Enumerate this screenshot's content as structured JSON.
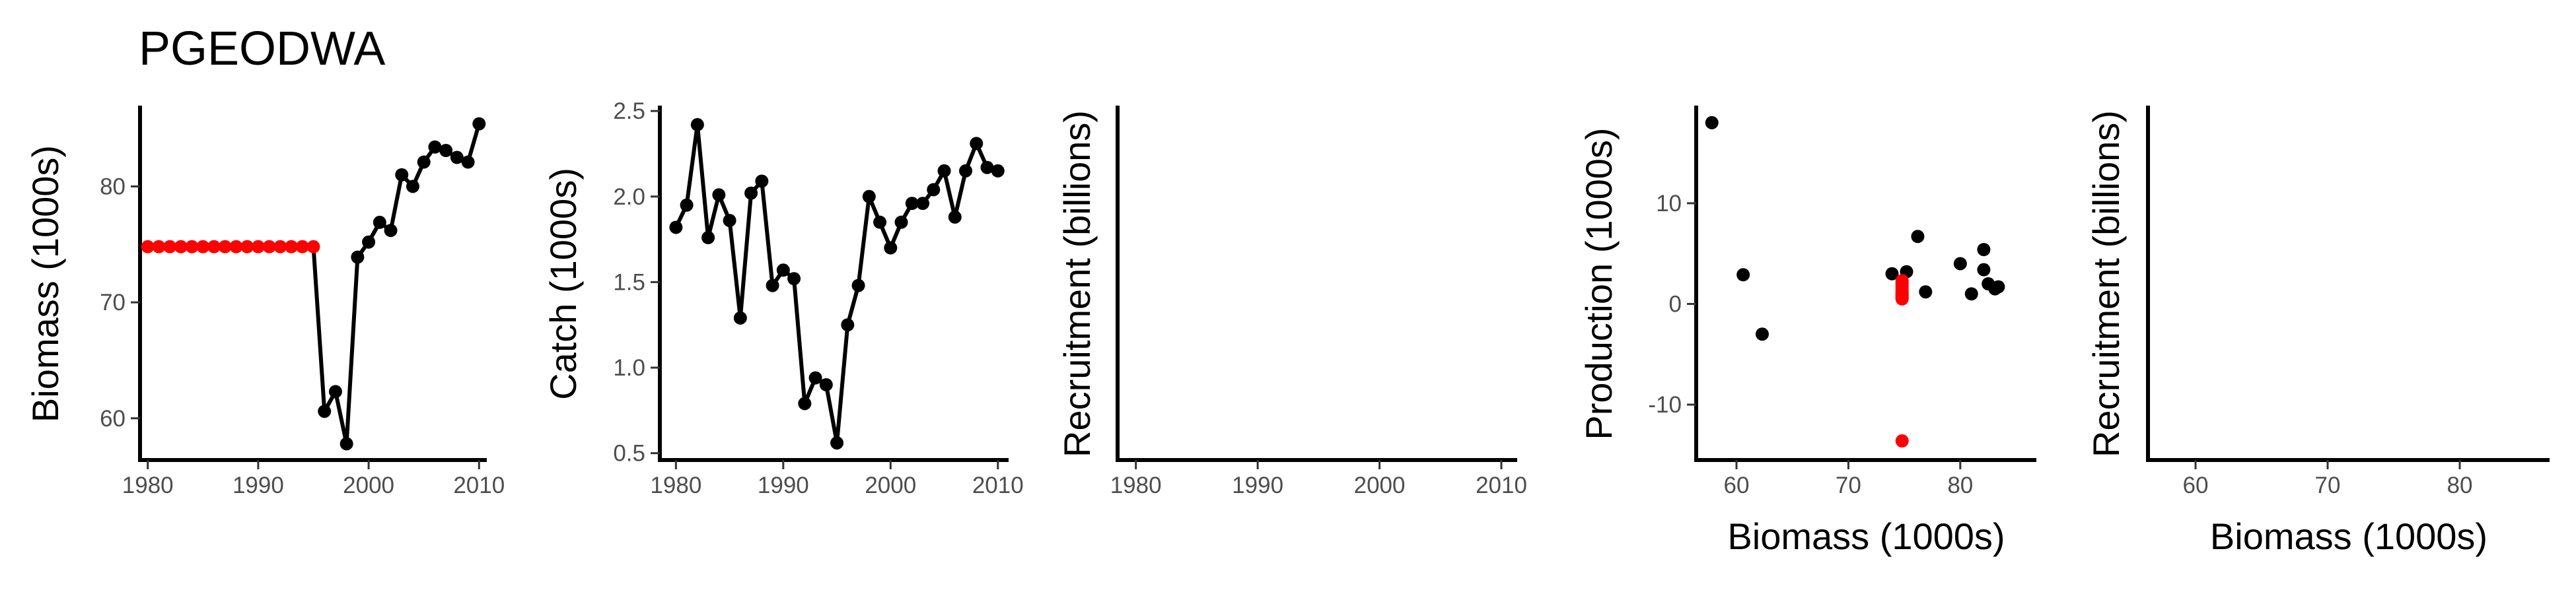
{
  "figure": {
    "title": "PGEODWA"
  },
  "colors": {
    "observed": "#000000",
    "imputed": "#ff0000",
    "text": "#000000",
    "tick_text": "#4d4d4d"
  },
  "chart_data": [
    {
      "id": "biomass",
      "type": "line",
      "xlabel": "",
      "ylabel": "Biomass (1000s)",
      "xlim": [
        1979.3,
        2010.7
      ],
      "ylim": [
        56.4,
        86.8
      ],
      "xticks": [
        1980,
        1990,
        2000,
        2010
      ],
      "yticks": [
        60,
        70,
        80
      ],
      "series": [
        {
          "x": [
            1980,
            1981,
            1982,
            1983,
            1984,
            1985,
            1986,
            1987,
            1988,
            1989,
            1990,
            1991,
            1992,
            1993,
            1994,
            1995,
            1996,
            1997,
            1998,
            1999,
            2000,
            2001,
            2002,
            2003,
            2004,
            2005,
            2006,
            2007,
            2008,
            2009,
            2010
          ],
          "y": [
            74.8,
            74.8,
            74.8,
            74.8,
            74.8,
            74.8,
            74.8,
            74.8,
            74.8,
            74.8,
            74.8,
            74.8,
            74.8,
            74.8,
            74.8,
            74.8,
            60.6,
            62.3,
            57.8,
            73.9,
            75.2,
            76.9,
            76.2,
            81.0,
            80.0,
            82.1,
            83.4,
            83.1,
            82.5,
            82.1,
            85.4
          ],
          "point_colors": [
            "imputed",
            "imputed",
            "imputed",
            "imputed",
            "imputed",
            "imputed",
            "imputed",
            "imputed",
            "imputed",
            "imputed",
            "imputed",
            "imputed",
            "imputed",
            "imputed",
            "imputed",
            "imputed",
            "observed",
            "observed",
            "observed",
            "observed",
            "observed",
            "observed",
            "observed",
            "observed",
            "observed",
            "observed",
            "observed",
            "observed",
            "observed",
            "observed",
            "observed"
          ],
          "line_from_index": 15
        }
      ]
    },
    {
      "id": "catch",
      "type": "line",
      "xlabel": "",
      "ylabel": "Catch (1000s)",
      "xlim": [
        1978.5,
        2011.0
      ],
      "ylim": [
        0.46,
        2.52
      ],
      "xticks": [
        1980,
        1990,
        2000,
        2010
      ],
      "yticks": [
        0.5,
        1.0,
        1.5,
        2.0,
        2.5
      ],
      "ytick_labels": [
        "0.5",
        "1.0",
        "1.5",
        "2.0",
        "2.5"
      ],
      "series": [
        {
          "x": [
            1980,
            1981,
            1982,
            1983,
            1984,
            1985,
            1986,
            1987,
            1988,
            1989,
            1990,
            1991,
            1992,
            1993,
            1994,
            1995,
            1996,
            1997,
            1998,
            1999,
            2000,
            2001,
            2002,
            2003,
            2004,
            2005,
            2006,
            2007,
            2008,
            2009,
            2010
          ],
          "y": [
            1.82,
            1.95,
            2.42,
            1.76,
            2.01,
            1.86,
            1.29,
            2.02,
            2.09,
            1.48,
            1.57,
            1.52,
            0.79,
            0.94,
            0.9,
            0.56,
            1.25,
            1.48,
            2.0,
            1.85,
            1.7,
            1.85,
            1.96,
            1.96,
            2.04,
            2.15,
            1.88,
            2.15,
            2.31,
            2.17,
            2.15
          ],
          "line_from_index": 0
        }
      ]
    },
    {
      "id": "recruitment-time",
      "type": "scatter",
      "xlabel": "",
      "ylabel": "Recruitment (billions)",
      "xlim": [
        1978.5,
        2011.3
      ],
      "xticks": [
        1980,
        1990,
        2000,
        2010
      ],
      "yticks": [],
      "series": []
    },
    {
      "id": "production",
      "type": "scatter",
      "xlabel": "Biomass (1000s)",
      "ylabel": "Production (1000s)",
      "xlim": [
        56.4,
        86.8
      ],
      "ylim": [
        -15.5,
        19.5
      ],
      "xticks": [
        60,
        70,
        80
      ],
      "yticks": [
        -10,
        0,
        10
      ],
      "series": [
        {
          "x": [
            57.8,
            60.6,
            62.3,
            73.9,
            75.2,
            76.2,
            76.9,
            74.8,
            74.8,
            74.8,
            74.8,
            74.8,
            74.8,
            74.8,
            74.8,
            74.8,
            74.8,
            74.8,
            74.8,
            74.8,
            74.8,
            74.8,
            80.0,
            81.0,
            82.1,
            82.1,
            82.5,
            83.4,
            83.1
          ],
          "y": [
            18.0,
            2.9,
            -3.0,
            3.0,
            3.2,
            6.7,
            1.2,
            2.3,
            2.0,
            1.8,
            1.5,
            1.3,
            1.0,
            0.9,
            0.8,
            0.6,
            0.5,
            2.1,
            1.7,
            1.1,
            0.7,
            -13.6,
            4.0,
            1.0,
            5.4,
            3.4,
            2.0,
            1.7,
            1.5
          ],
          "point_colors": [
            "observed",
            "observed",
            "observed",
            "observed",
            "observed",
            "observed",
            "observed",
            "imputed",
            "imputed",
            "imputed",
            "imputed",
            "imputed",
            "imputed",
            "imputed",
            "imputed",
            "imputed",
            "imputed",
            "imputed",
            "imputed",
            "imputed",
            "imputed",
            "imputed",
            "observed",
            "observed",
            "observed",
            "observed",
            "observed",
            "observed",
            "observed"
          ]
        }
      ]
    },
    {
      "id": "recruitment-biomass",
      "type": "scatter",
      "xlabel": "Biomass (1000s)",
      "ylabel": "Recruitment (billions)",
      "xlim": [
        56.4,
        86.8
      ],
      "xticks": [
        60,
        70,
        80
      ],
      "yticks": [],
      "series": []
    }
  ]
}
